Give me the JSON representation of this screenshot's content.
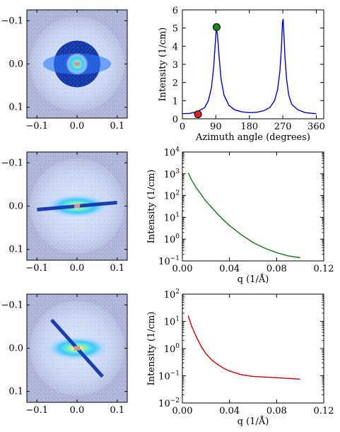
{
  "chart_data": [
    {
      "type": "heatmap",
      "panel": "2d-pattern-annular-mask",
      "xticks": [
        "−0.1",
        "0.0",
        "0.1"
      ],
      "yticks": [
        "−0.1",
        "0.0",
        "0.1"
      ],
      "xlim": [
        -0.125,
        0.125
      ],
      "ylim": [
        -0.125,
        0.125
      ],
      "mask": {
        "shape": "annulus",
        "inner_radius": 0.028,
        "outer_radius": 0.058
      }
    },
    {
      "type": "line",
      "panel": "azimuthal-profile",
      "xlabel": "Azimuth angle (degrees)",
      "ylabel": "Intensity (1/cm)",
      "xlim": [
        0,
        380
      ],
      "ylim": [
        0,
        6
      ],
      "xticks": [
        "0",
        "90",
        "180",
        "270",
        "360"
      ],
      "yticks": [
        "0",
        "1",
        "2",
        "3",
        "4",
        "5",
        "6"
      ],
      "series": [
        {
          "color": "#0000cc",
          "x": [
            0,
            20,
            40,
            60,
            70,
            78,
            84,
            88,
            91,
            94,
            98,
            104,
            112,
            125,
            140,
            160,
            180,
            200,
            220,
            235,
            248,
            256,
            262,
            266,
            269,
            271,
            273,
            276,
            280,
            286,
            294,
            310,
            330,
            350,
            360
          ],
          "y": [
            0.28,
            0.3,
            0.38,
            0.62,
            1.0,
            1.7,
            2.8,
            4.0,
            4.9,
            4.7,
            3.6,
            2.2,
            1.3,
            0.75,
            0.5,
            0.38,
            0.34,
            0.36,
            0.45,
            0.62,
            1.0,
            1.6,
            2.6,
            3.8,
            5.3,
            5.5,
            4.6,
            3.3,
            2.2,
            1.3,
            0.8,
            0.5,
            0.34,
            0.3,
            0.28
          ]
        }
      ],
      "markers": [
        {
          "x": 42,
          "y": 0.25,
          "color": "#dd2222"
        },
        {
          "x": 92,
          "y": 5.05,
          "color": "#118811"
        }
      ]
    },
    {
      "type": "heatmap",
      "panel": "2d-pattern-horizontal-sector",
      "xticks": [
        "−0.1",
        "0.0",
        "0.1"
      ],
      "yticks": [
        "−0.1",
        "0.0",
        "0.1"
      ],
      "xlim": [
        -0.125,
        0.125
      ],
      "ylim": [
        -0.125,
        0.125
      ],
      "mask": {
        "shape": "sector",
        "angle_deg": -5,
        "length": 0.1
      }
    },
    {
      "type": "line",
      "panel": "q-profile-horizontal",
      "xlabel": "q (1/Å)",
      "ylabel": "Intensity (1/cm)",
      "xlim": [
        0,
        0.12
      ],
      "ylim_exp": [
        -1,
        4
      ],
      "log_y": true,
      "xticks": [
        "0.00",
        "0.04",
        "0.08",
        "0.12"
      ],
      "ytick_base": "10",
      "ytick_exps": [
        "−1",
        "0",
        "1",
        "2",
        "3",
        "4"
      ],
      "series": [
        {
          "color": "#117711",
          "x": [
            0.005,
            0.008,
            0.012,
            0.016,
            0.02,
            0.025,
            0.03,
            0.035,
            0.04,
            0.05,
            0.06,
            0.07,
            0.08,
            0.09,
            0.1
          ],
          "y": [
            1100,
            500,
            220,
            110,
            55,
            28,
            14,
            7.5,
            4.2,
            1.6,
            0.7,
            0.38,
            0.24,
            0.17,
            0.14
          ]
        }
      ]
    },
    {
      "type": "heatmap",
      "panel": "2d-pattern-diagonal-sector",
      "xticks": [
        "−0.1",
        "0.0",
        "0.1"
      ],
      "yticks": [
        "−0.1",
        "0.0",
        "0.1"
      ],
      "xlim": [
        -0.125,
        0.125
      ],
      "ylim": [
        -0.125,
        0.125
      ],
      "mask": {
        "shape": "sector",
        "angle_deg": 48,
        "length": 0.095
      }
    },
    {
      "type": "line",
      "panel": "q-profile-diagonal",
      "xlabel": "q (1/Å)",
      "ylabel": "Intensity (1/cm)",
      "xlim": [
        0,
        0.12
      ],
      "ylim_exp": [
        -2,
        2
      ],
      "log_y": true,
      "xticks": [
        "0.00",
        "0.04",
        "0.08",
        "0.12"
      ],
      "ytick_base": "10",
      "ytick_exps": [
        "−2",
        "−1",
        "0",
        "1",
        "2"
      ],
      "series": [
        {
          "color": "#cc0000",
          "x": [
            0.005,
            0.008,
            0.012,
            0.016,
            0.02,
            0.025,
            0.03,
            0.035,
            0.04,
            0.05,
            0.06,
            0.07,
            0.08,
            0.09,
            0.1
          ],
          "y": [
            16,
            6.5,
            2.6,
            1.2,
            0.65,
            0.38,
            0.26,
            0.19,
            0.15,
            0.11,
            0.095,
            0.09,
            0.085,
            0.08,
            0.075
          ]
        }
      ]
    }
  ]
}
